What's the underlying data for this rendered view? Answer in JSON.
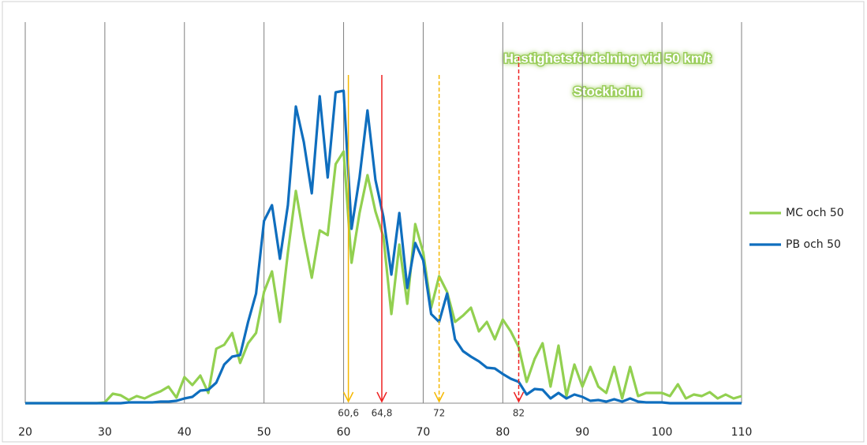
{
  "chart_data": {
    "type": "line",
    "title": "Hastighetsfördelning vid 50 km/t",
    "subtitle": "Stockholm",
    "x": [
      20,
      21,
      22,
      23,
      24,
      25,
      26,
      27,
      28,
      29,
      30,
      31,
      32,
      33,
      34,
      35,
      36,
      37,
      38,
      39,
      40,
      41,
      42,
      43,
      44,
      45,
      46,
      47,
      48,
      49,
      50,
      51,
      52,
      53,
      54,
      55,
      56,
      57,
      58,
      59,
      60,
      61,
      62,
      63,
      64,
      65,
      66,
      67,
      68,
      69,
      70,
      71,
      72,
      73,
      74,
      75,
      76,
      77,
      78,
      79,
      80,
      81,
      82,
      83,
      84,
      85,
      86,
      87,
      88,
      89,
      90,
      91,
      92,
      93,
      94,
      95,
      96,
      97,
      98,
      99,
      100,
      101,
      102,
      103,
      104,
      105,
      106,
      107,
      108,
      109,
      110
    ],
    "series": [
      {
        "name": "MC och 50",
        "color": "#92d050",
        "values": [
          0,
          0,
          0,
          0,
          0,
          0,
          0,
          0,
          0,
          0,
          0.2,
          2.4,
          2,
          0.8,
          1.8,
          1.2,
          2.2,
          3,
          4.2,
          1.4,
          6.6,
          4.6,
          7,
          2.6,
          13.8,
          14.8,
          17.8,
          10.2,
          15.2,
          17.8,
          28.2,
          33.4,
          20.6,
          38.2,
          53.8,
          42.2,
          31.8,
          43.8,
          42.6,
          60.6,
          63.8,
          35.6,
          48.2,
          57.8,
          48.6,
          42.2,
          22.6,
          40.2,
          25.2,
          45.4,
          38.2,
          24.2,
          32.2,
          28.2,
          20.6,
          22.2,
          24.2,
          18.2,
          20.6,
          16.2,
          21.2,
          18.2,
          14.2,
          5.4,
          11.2,
          15.2,
          4.2,
          14.6,
          1.8,
          9.8,
          4.2,
          9.2,
          4.2,
          2.6,
          9.2,
          1.2,
          9.2,
          1.8,
          2.6,
          2.6,
          2.6,
          1.8,
          4.8,
          1.2,
          2.2,
          1.8,
          2.8,
          1.2,
          2.2,
          1.2,
          1.8
        ]
      },
      {
        "name": "PB och 50",
        "color": "#0f6ebe",
        "values": [
          0,
          0,
          0,
          0,
          0,
          0,
          0,
          0,
          0,
          0,
          0,
          0,
          0,
          0.2,
          0.2,
          0.2,
          0.2,
          0.4,
          0.4,
          0.6,
          1.2,
          1.6,
          3.2,
          3.4,
          5.2,
          9.8,
          11.8,
          12.2,
          20.6,
          27.8,
          46.2,
          50.2,
          36.6,
          50.2,
          75.2,
          66.2,
          53.2,
          77.8,
          57.2,
          78.8,
          79.2,
          44.2,
          57.2,
          74.2,
          56.6,
          47.2,
          32.6,
          48.2,
          29.2,
          40.6,
          36.2,
          22.6,
          20.6,
          27.8,
          16.2,
          13.2,
          11.8,
          10.6,
          9,
          8.8,
          7.4,
          6.2,
          5.4,
          2.2,
          3.6,
          3.4,
          1.2,
          2.6,
          1.2,
          2.2,
          1.6,
          0.6,
          0.8,
          0.4,
          1,
          0.4,
          1.2,
          0.4,
          0.2,
          0.2,
          0.2,
          0,
          0,
          0,
          0,
          0,
          0,
          0,
          0,
          0,
          0
        ]
      }
    ],
    "xlim": [
      20,
      110
    ],
    "xticks": [
      20,
      30,
      40,
      50,
      60,
      70,
      80,
      90,
      100,
      110
    ],
    "ylim": [
      0,
      100
    ],
    "grid": true,
    "legend": "right",
    "annotations": [
      {
        "x": 60.6,
        "label": "60,6",
        "color": "#f5b800",
        "dashed": false
      },
      {
        "x": 64.8,
        "label": "64,8",
        "color": "#ee2222",
        "dashed": false
      },
      {
        "x": 72,
        "label": "72",
        "color": "#f5b800",
        "dashed": true
      },
      {
        "x": 82,
        "label": "82",
        "color": "#ee2222",
        "dashed": true
      }
    ]
  }
}
